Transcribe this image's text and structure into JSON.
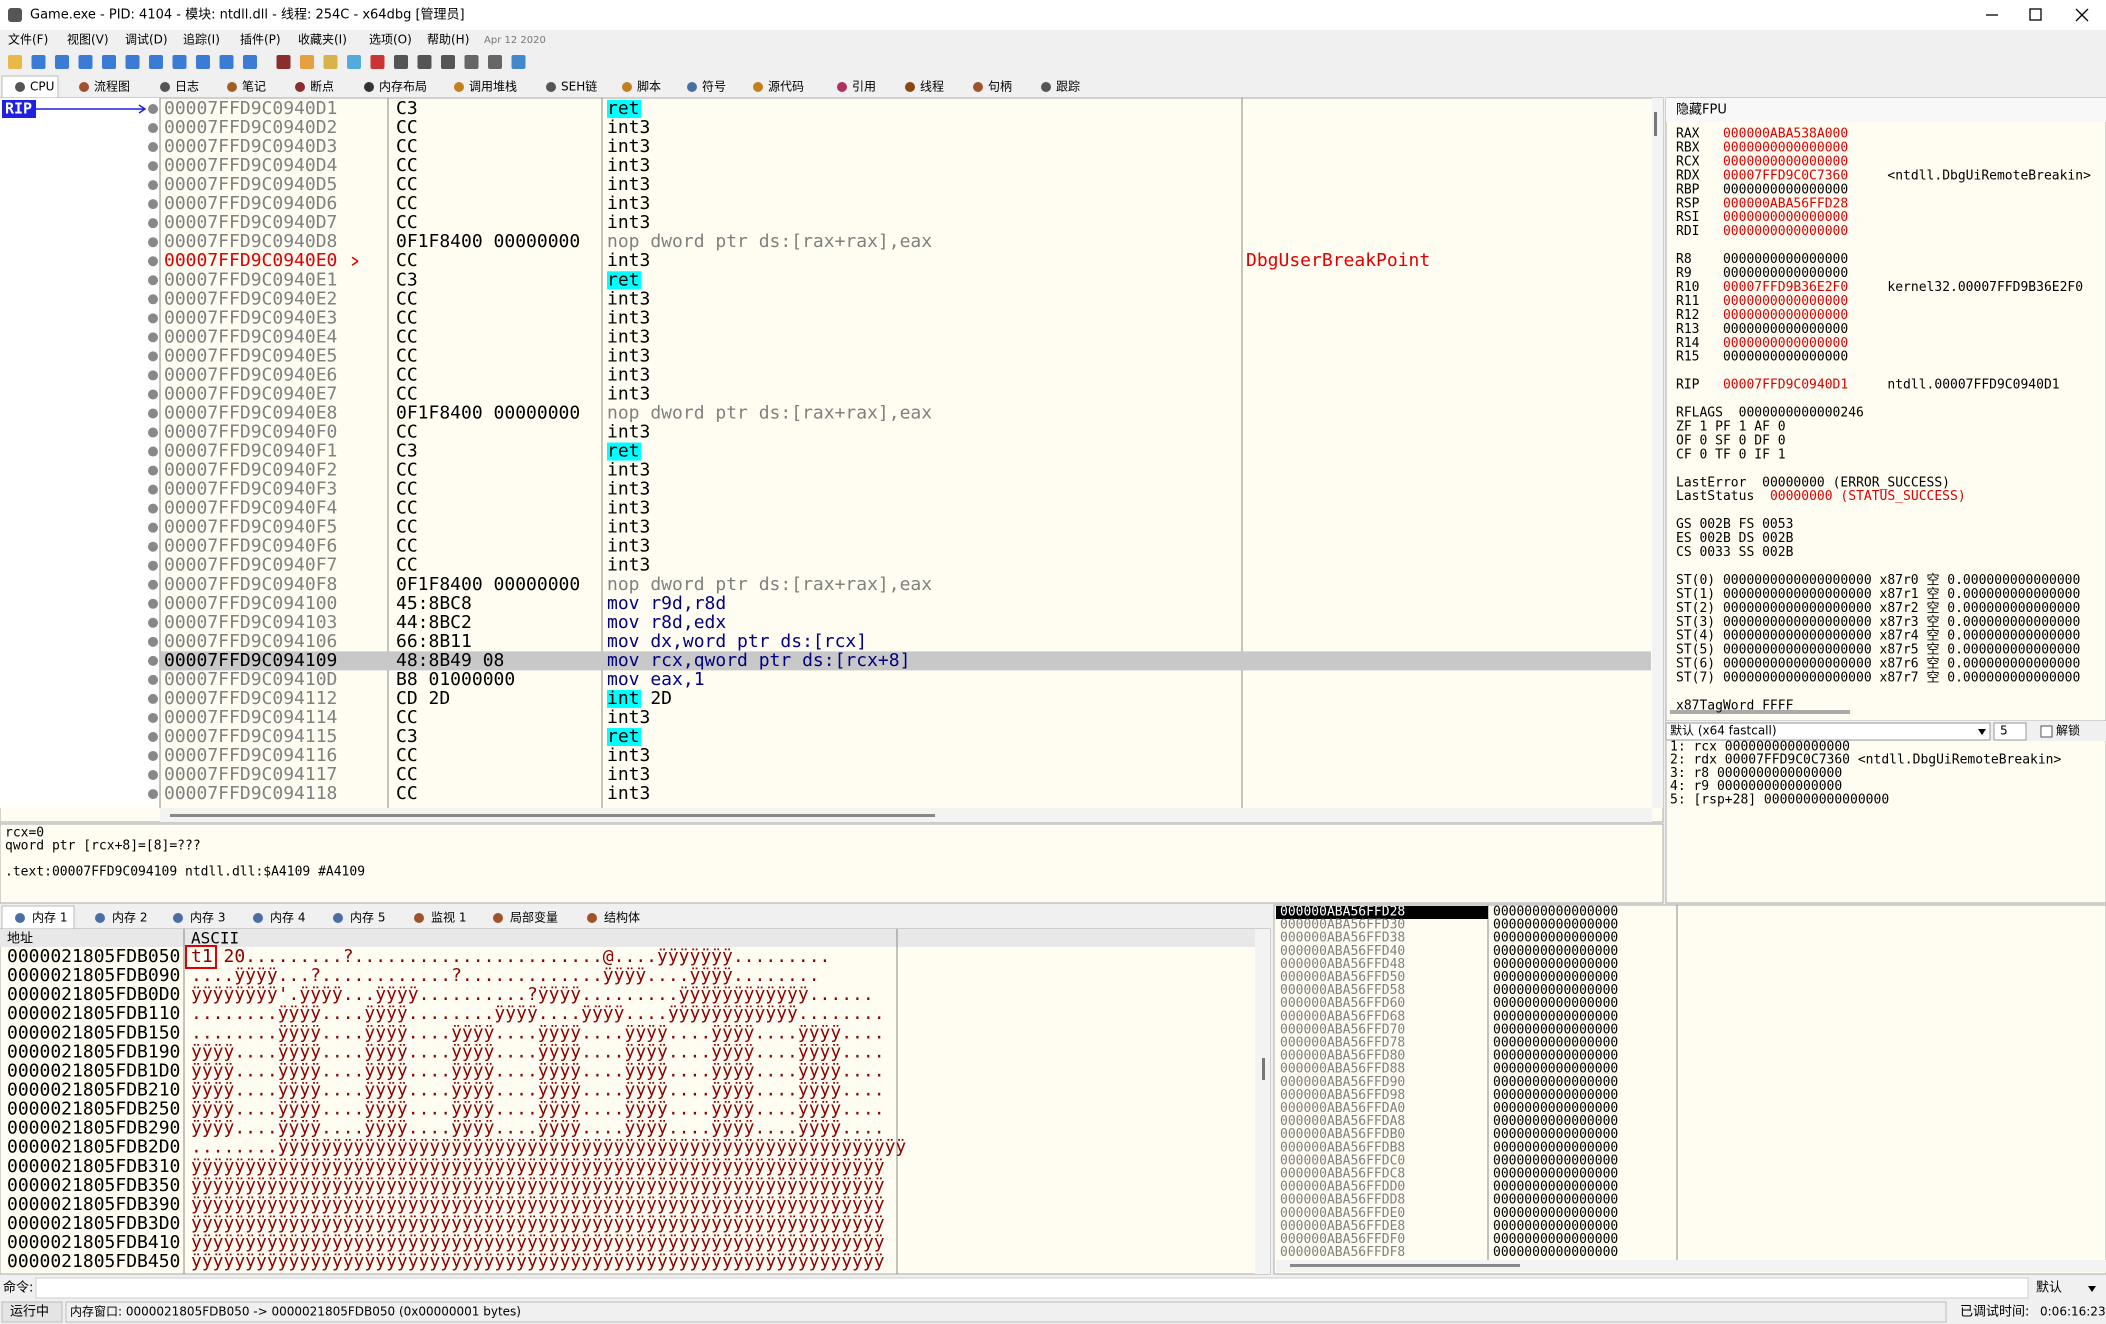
{
  "title_bar": {
    "title": "Game.exe - PID: 4104 - 模块: ntdll.dll - 线程: 254C - x64dbg [管理员]"
  },
  "menu": [
    "文件(F)",
    "视图(V)",
    "调试(D)",
    "追踪(I)",
    "插件(P)",
    "收藏夹(I)",
    "选项(O)",
    "帮助(H)"
  ],
  "build_date": "Apr 12 2020",
  "tabs": [
    "CPU",
    "流程图",
    "日志",
    "笔记",
    "断点",
    "内存布局",
    "调用堆栈",
    "SEH链",
    "脚本",
    "符号",
    "源代码",
    "引用",
    "线程",
    "句柄",
    "跟踪"
  ],
  "disasm": {
    "rip_label": "RIP",
    "rows": [
      {
        "addr": "00007FFD9C0940D1",
        "bytes": "C3",
        "instr": "ret"
      },
      {
        "addr": "00007FFD9C0940D2",
        "bytes": "CC",
        "instr": "int3"
      },
      {
        "addr": "00007FFD9C0940D3",
        "bytes": "CC",
        "instr": "int3"
      },
      {
        "addr": "00007FFD9C0940D4",
        "bytes": "CC",
        "instr": "int3"
      },
      {
        "addr": "00007FFD9C0940D5",
        "bytes": "CC",
        "instr": "int3"
      },
      {
        "addr": "00007FFD9C0940D6",
        "bytes": "CC",
        "instr": "int3"
      },
      {
        "addr": "00007FFD9C0940D7",
        "bytes": "CC",
        "instr": "int3"
      },
      {
        "addr": "00007FFD9C0940D8",
        "bytes": "0F1F8400 00000000",
        "instr": "nop dword ptr ds:[rax+rax],eax"
      },
      {
        "addr": "00007FFD9C0940E0",
        "bytes": "CC",
        "instr": "int3",
        "comment": "DbgUserBreakPoint",
        "color": "#e00000"
      },
      {
        "addr": "00007FFD9C0940E1",
        "bytes": "C3",
        "instr": "ret"
      },
      {
        "addr": "00007FFD9C0940E2",
        "bytes": "CC",
        "instr": "int3"
      },
      {
        "addr": "00007FFD9C0940E3",
        "bytes": "CC",
        "instr": "int3"
      },
      {
        "addr": "00007FFD9C0940E4",
        "bytes": "CC",
        "instr": "int3"
      },
      {
        "addr": "00007FFD9C0940E5",
        "bytes": "CC",
        "instr": "int3"
      },
      {
        "addr": "00007FFD9C0940E6",
        "bytes": "CC",
        "instr": "int3"
      },
      {
        "addr": "00007FFD9C0940E7",
        "bytes": "CC",
        "instr": "int3"
      },
      {
        "addr": "00007FFD9C0940E8",
        "bytes": "0F1F8400 00000000",
        "instr": "nop dword ptr ds:[rax+rax],eax"
      },
      {
        "addr": "00007FFD9C0940F0",
        "bytes": "CC",
        "instr": "int3"
      },
      {
        "addr": "00007FFD9C0940F1",
        "bytes": "C3",
        "instr": "ret"
      },
      {
        "addr": "00007FFD9C0940F2",
        "bytes": "CC",
        "instr": "int3"
      },
      {
        "addr": "00007FFD9C0940F3",
        "bytes": "CC",
        "instr": "int3"
      },
      {
        "addr": "00007FFD9C0940F4",
        "bytes": "CC",
        "instr": "int3"
      },
      {
        "addr": "00007FFD9C0940F5",
        "bytes": "CC",
        "instr": "int3"
      },
      {
        "addr": "00007FFD9C0940F6",
        "bytes": "CC",
        "instr": "int3"
      },
      {
        "addr": "00007FFD9C0940F7",
        "bytes": "CC",
        "instr": "int3"
      },
      {
        "addr": "00007FFD9C0940F8",
        "bytes": "0F1F8400 00000000",
        "instr": "nop dword ptr ds:[rax+rax],eax"
      },
      {
        "addr": "00007FFD9C094100",
        "bytes": "45:8BC8",
        "instr": "mov r9d,r8d"
      },
      {
        "addr": "00007FFD9C094103",
        "bytes": "44:8BC2",
        "instr": "mov r8d,edx"
      },
      {
        "addr": "00007FFD9C094106",
        "bytes": "66:8B11",
        "instr": "mov dx,word ptr ds:[rcx]"
      },
      {
        "addr": "00007FFD9C094109",
        "bytes": "48:8B49 08",
        "instr": "mov rcx,qword ptr ds:[rcx+8]",
        "selected": true
      },
      {
        "addr": "00007FFD9C09410D",
        "bytes": "B8 01000000",
        "instr": "mov eax,1"
      },
      {
        "addr": "00007FFD9C094112",
        "bytes": "CD 2D",
        "instr": "int 2D"
      },
      {
        "addr": "00007FFD9C094114",
        "bytes": "CC",
        "instr": "int3"
      },
      {
        "addr": "00007FFD9C094115",
        "bytes": "C3",
        "instr": "ret"
      },
      {
        "addr": "00007FFD9C094116",
        "bytes": "CC",
        "instr": "int3"
      },
      {
        "addr": "00007FFD9C094117",
        "bytes": "CC",
        "instr": "int3"
      },
      {
        "addr": "00007FFD9C094118",
        "bytes": "CC",
        "instr": "int3"
      }
    ]
  },
  "registers": {
    "header": "隐藏FPU",
    "groups": [
      [
        {
          "name": "RAX",
          "value": "000000ABA538A000",
          "color": "#e00000"
        },
        {
          "name": "RBX",
          "value": "0000000000000000",
          "color": "#e00000"
        },
        {
          "name": "RCX",
          "value": "0000000000000000",
          "color": "#e00000"
        },
        {
          "name": "RDX",
          "value": "00007FFD9C0C7360",
          "color": "#e00000",
          "info": "<ntdll.DbgUiRemoteBreakin>"
        },
        {
          "name": "RBP",
          "value": "0000000000000000"
        },
        {
          "name": "RSP",
          "value": "000000ABA56FFD28",
          "color": "#e00000"
        },
        {
          "name": "RSI",
          "value": "0000000000000000",
          "color": "#e00000"
        },
        {
          "name": "RDI",
          "value": "0000000000000000",
          "color": "#e00000"
        }
      ],
      [
        {
          "name": "R8",
          "value": "0000000000000000"
        },
        {
          "name": "R9",
          "value": "0000000000000000"
        },
        {
          "name": "R10",
          "value": "00007FFD9B36E2F0",
          "color": "#e00000",
          "info": "kernel32.00007FFD9B36E2F0"
        },
        {
          "name": "R11",
          "value": "0000000000000000",
          "color": "#e00000"
        },
        {
          "name": "R12",
          "value": "0000000000000000",
          "color": "#e00000"
        },
        {
          "name": "R13",
          "value": "0000000000000000"
        },
        {
          "name": "R14",
          "value": "0000000000000000",
          "color": "#e00000"
        },
        {
          "name": "R15",
          "value": "0000000000000000"
        }
      ],
      [
        {
          "name": "RIP",
          "value": "00007FFD9C0940D1",
          "color": "#e00000",
          "info": "ntdll.00007FFD9C0940D1"
        }
      ],
      [
        {
          "name": "RFLAGS",
          "value": "0000000000000246"
        },
        {
          "name": "ZF 1  PF 1  AF 0"
        },
        {
          "name": "OF 0  SF 0  DF 0"
        },
        {
          "name": "CF 0  TF 0  IF 1"
        }
      ],
      [
        {
          "name": "LastError",
          "value": "00000000",
          "info": "(ERROR_SUCCESS)"
        },
        {
          "name": "LastStatus",
          "value": "00000000",
          "color": "#e00000",
          "info": "(STATUS_SUCCESS)",
          "info_color": "#e00000"
        }
      ],
      [
        {
          "name": "GS 002B  FS 0053"
        },
        {
          "name": "ES 002B  DS 002B"
        },
        {
          "name": "CS 0033  SS 002B"
        }
      ],
      [
        {
          "name": "ST(0) 0000000000000000000 x87r0 空 0.000000000000000"
        },
        {
          "name": "ST(1) 0000000000000000000 x87r1 空 0.000000000000000"
        },
        {
          "name": "ST(2) 0000000000000000000 x87r2 空 0.000000000000000"
        },
        {
          "name": "ST(3) 0000000000000000000 x87r3 空 0.000000000000000"
        },
        {
          "name": "ST(4) 0000000000000000000 x87r4 空 0.000000000000000"
        },
        {
          "name": "ST(5) 0000000000000000000 x87r5 空 0.000000000000000"
        },
        {
          "name": "ST(6) 0000000000000000000 x87r6 空 0.000000000000000"
        },
        {
          "name": "ST(7) 0000000000000000000 x87r7 空 0.000000000000000"
        }
      ],
      [
        {
          "name": "x87TagWord FFFF"
        }
      ]
    ]
  },
  "call_args": {
    "convention": "默认 (x64 fastcall)",
    "count": "5",
    "unlock": "解锁",
    "lines": [
      "1: rcx 0000000000000000",
      "2: rdx 00007FFD9C0C7360 <ntdll.DbgUiRemoteBreakin>",
      "3: r8 0000000000000000",
      "4: r9 0000000000000000",
      "5: [rsp+28] 0000000000000000"
    ]
  },
  "info": [
    "rcx=0",
    "qword ptr [rcx+8]=[8]=???",
    ".text:00007FFD9C094109 ntdll.dll:$A4109 #A4109"
  ],
  "memory_tabs": [
    "内存 1",
    "内存 2",
    "内存 3",
    "内存 4",
    "内存 5",
    "监视 1",
    "局部变量",
    "结构体"
  ],
  "dump": {
    "header_addr": "地址",
    "header_ascii": "ASCII",
    "rows": [
      {
        "addr": "0000021805FDB050",
        "ascii": "t1 20.........?.......................@....ÿÿÿÿÿÿÿ........."
      },
      {
        "addr": "0000021805FDB090",
        "ascii": "....ÿÿÿÿ...?............?.............ÿÿÿÿ....ÿÿÿÿ........"
      },
      {
        "addr": "0000021805FDB0D0",
        "ascii": "ÿÿÿÿÿÿÿÿ'.ÿÿÿÿ...ÿÿÿÿ..........?ÿÿÿÿ.........ÿÿÿÿÿÿÿÿÿÿÿÿ......"
      },
      {
        "addr": "0000021805FDB110",
        "ascii": "........ÿÿÿÿ....ÿÿÿÿ........ÿÿÿÿ....ÿÿÿÿ....ÿÿÿÿÿÿÿÿÿÿÿÿ........"
      },
      {
        "addr": "0000021805FDB150",
        "ascii": "........ÿÿÿÿ....ÿÿÿÿ....ÿÿÿÿ....ÿÿÿÿ....ÿÿÿÿ....ÿÿÿÿ....ÿÿÿÿ...."
      },
      {
        "addr": "0000021805FDB190",
        "ascii": "ÿÿÿÿ....ÿÿÿÿ....ÿÿÿÿ....ÿÿÿÿ....ÿÿÿÿ....ÿÿÿÿ....ÿÿÿÿ....ÿÿÿÿ...."
      },
      {
        "addr": "0000021805FDB1D0",
        "ascii": "ÿÿÿÿ....ÿÿÿÿ....ÿÿÿÿ....ÿÿÿÿ....ÿÿÿÿ....ÿÿÿÿ....ÿÿÿÿ....ÿÿÿÿ...."
      },
      {
        "addr": "0000021805FDB210",
        "ascii": "ÿÿÿÿ....ÿÿÿÿ....ÿÿÿÿ....ÿÿÿÿ....ÿÿÿÿ....ÿÿÿÿ....ÿÿÿÿ....ÿÿÿÿ...."
      },
      {
        "addr": "0000021805FDB250",
        "ascii": "ÿÿÿÿ....ÿÿÿÿ....ÿÿÿÿ....ÿÿÿÿ....ÿÿÿÿ....ÿÿÿÿ....ÿÿÿÿ....ÿÿÿÿ...."
      },
      {
        "addr": "0000021805FDB290",
        "ascii": "ÿÿÿÿ....ÿÿÿÿ....ÿÿÿÿ....ÿÿÿÿ....ÿÿÿÿ....ÿÿÿÿ....ÿÿÿÿ....ÿÿÿÿ...."
      },
      {
        "addr": "0000021805FDB2D0",
        "ascii": "........ÿÿÿÿÿÿÿÿÿÿÿÿÿÿÿÿÿÿÿÿÿÿÿÿÿÿÿÿÿÿÿÿÿÿÿÿÿÿÿÿÿÿÿÿÿÿÿÿÿÿÿÿÿÿÿÿÿÿ"
      },
      {
        "addr": "0000021805FDB310",
        "ascii": "ÿÿÿÿÿÿÿÿÿÿÿÿÿÿÿÿÿÿÿÿÿÿÿÿÿÿÿÿÿÿÿÿÿÿÿÿÿÿÿÿÿÿÿÿÿÿÿÿÿÿÿÿÿÿÿÿÿÿÿÿÿÿÿÿ"
      },
      {
        "addr": "0000021805FDB350",
        "ascii": "ÿÿÿÿÿÿÿÿÿÿÿÿÿÿÿÿÿÿÿÿÿÿÿÿÿÿÿÿÿÿÿÿÿÿÿÿÿÿÿÿÿÿÿÿÿÿÿÿÿÿÿÿÿÿÿÿÿÿÿÿÿÿÿÿ"
      },
      {
        "addr": "0000021805FDB390",
        "ascii": "ÿÿÿÿÿÿÿÿÿÿÿÿÿÿÿÿÿÿÿÿÿÿÿÿÿÿÿÿÿÿÿÿÿÿÿÿÿÿÿÿÿÿÿÿÿÿÿÿÿÿÿÿÿÿÿÿÿÿÿÿÿÿÿÿ"
      },
      {
        "addr": "0000021805FDB3D0",
        "ascii": "ÿÿÿÿÿÿÿÿÿÿÿÿÿÿÿÿÿÿÿÿÿÿÿÿÿÿÿÿÿÿÿÿÿÿÿÿÿÿÿÿÿÿÿÿÿÿÿÿÿÿÿÿÿÿÿÿÿÿÿÿÿÿÿÿ"
      },
      {
        "addr": "0000021805FDB410",
        "ascii": "ÿÿÿÿÿÿÿÿÿÿÿÿÿÿÿÿÿÿÿÿÿÿÿÿÿÿÿÿÿÿÿÿÿÿÿÿÿÿÿÿÿÿÿÿÿÿÿÿÿÿÿÿÿÿÿÿÿÿÿÿÿÿÿÿ"
      },
      {
        "addr": "0000021805FDB450",
        "ascii": "ÿÿÿÿÿÿÿÿÿÿÿÿÿÿÿÿÿÿÿÿÿÿÿÿÿÿÿÿÿÿÿÿÿÿÿÿÿÿÿÿÿÿÿÿÿÿÿÿÿÿÿÿÿÿÿÿÿÿÿÿÿÿÿÿ"
      }
    ]
  },
  "stack": {
    "rows": [
      {
        "addr": "000000ABA56FFD28",
        "value": "0000000000000000"
      },
      {
        "addr": "000000ABA56FFD30",
        "value": "0000000000000000"
      },
      {
        "addr": "000000ABA56FFD38",
        "value": "0000000000000000"
      },
      {
        "addr": "000000ABA56FFD40",
        "value": "0000000000000000"
      },
      {
        "addr": "000000ABA56FFD48",
        "value": "0000000000000000"
      },
      {
        "addr": "000000ABA56FFD50",
        "value": "0000000000000000"
      },
      {
        "addr": "000000ABA56FFD58",
        "value": "0000000000000000"
      },
      {
        "addr": "000000ABA56FFD60",
        "value": "0000000000000000"
      },
      {
        "addr": "000000ABA56FFD68",
        "value": "0000000000000000"
      },
      {
        "addr": "000000ABA56FFD70",
        "value": "0000000000000000"
      },
      {
        "addr": "000000ABA56FFD78",
        "value": "0000000000000000"
      },
      {
        "addr": "000000ABA56FFD80",
        "value": "0000000000000000"
      },
      {
        "addr": "000000ABA56FFD88",
        "value": "0000000000000000"
      },
      {
        "addr": "000000ABA56FFD90",
        "value": "0000000000000000"
      },
      {
        "addr": "000000ABA56FFD98",
        "value": "0000000000000000"
      },
      {
        "addr": "000000ABA56FFDA0",
        "value": "0000000000000000"
      },
      {
        "addr": "000000ABA56FFDA8",
        "value": "0000000000000000"
      },
      {
        "addr": "000000ABA56FFDB0",
        "value": "0000000000000000"
      },
      {
        "addr": "000000ABA56FFDB8",
        "value": "0000000000000000"
      },
      {
        "addr": "000000ABA56FFDC0",
        "value": "0000000000000000"
      },
      {
        "addr": "000000ABA56FFDC8",
        "value": "0000000000000000"
      },
      {
        "addr": "000000ABA56FFDD0",
        "value": "0000000000000000"
      },
      {
        "addr": "000000ABA56FFDD8",
        "value": "0000000000000000"
      },
      {
        "addr": "000000ABA56FFDE0",
        "value": "0000000000000000"
      },
      {
        "addr": "000000ABA56FFDE8",
        "value": "0000000000000000"
      },
      {
        "addr": "000000ABA56FFDF0",
        "value": "0000000000000000"
      },
      {
        "addr": "000000ABA56FFDF8",
        "value": "0000000000000000"
      }
    ]
  },
  "command": {
    "label": "命令:",
    "mode": "默认"
  },
  "status": {
    "state": "运行中",
    "message": "内存窗口: 0000021805FDB050 -> 0000021805FDB050 (0x00000001 bytes)",
    "time_label": "已调试时间:",
    "time": "0:06:16:23"
  }
}
